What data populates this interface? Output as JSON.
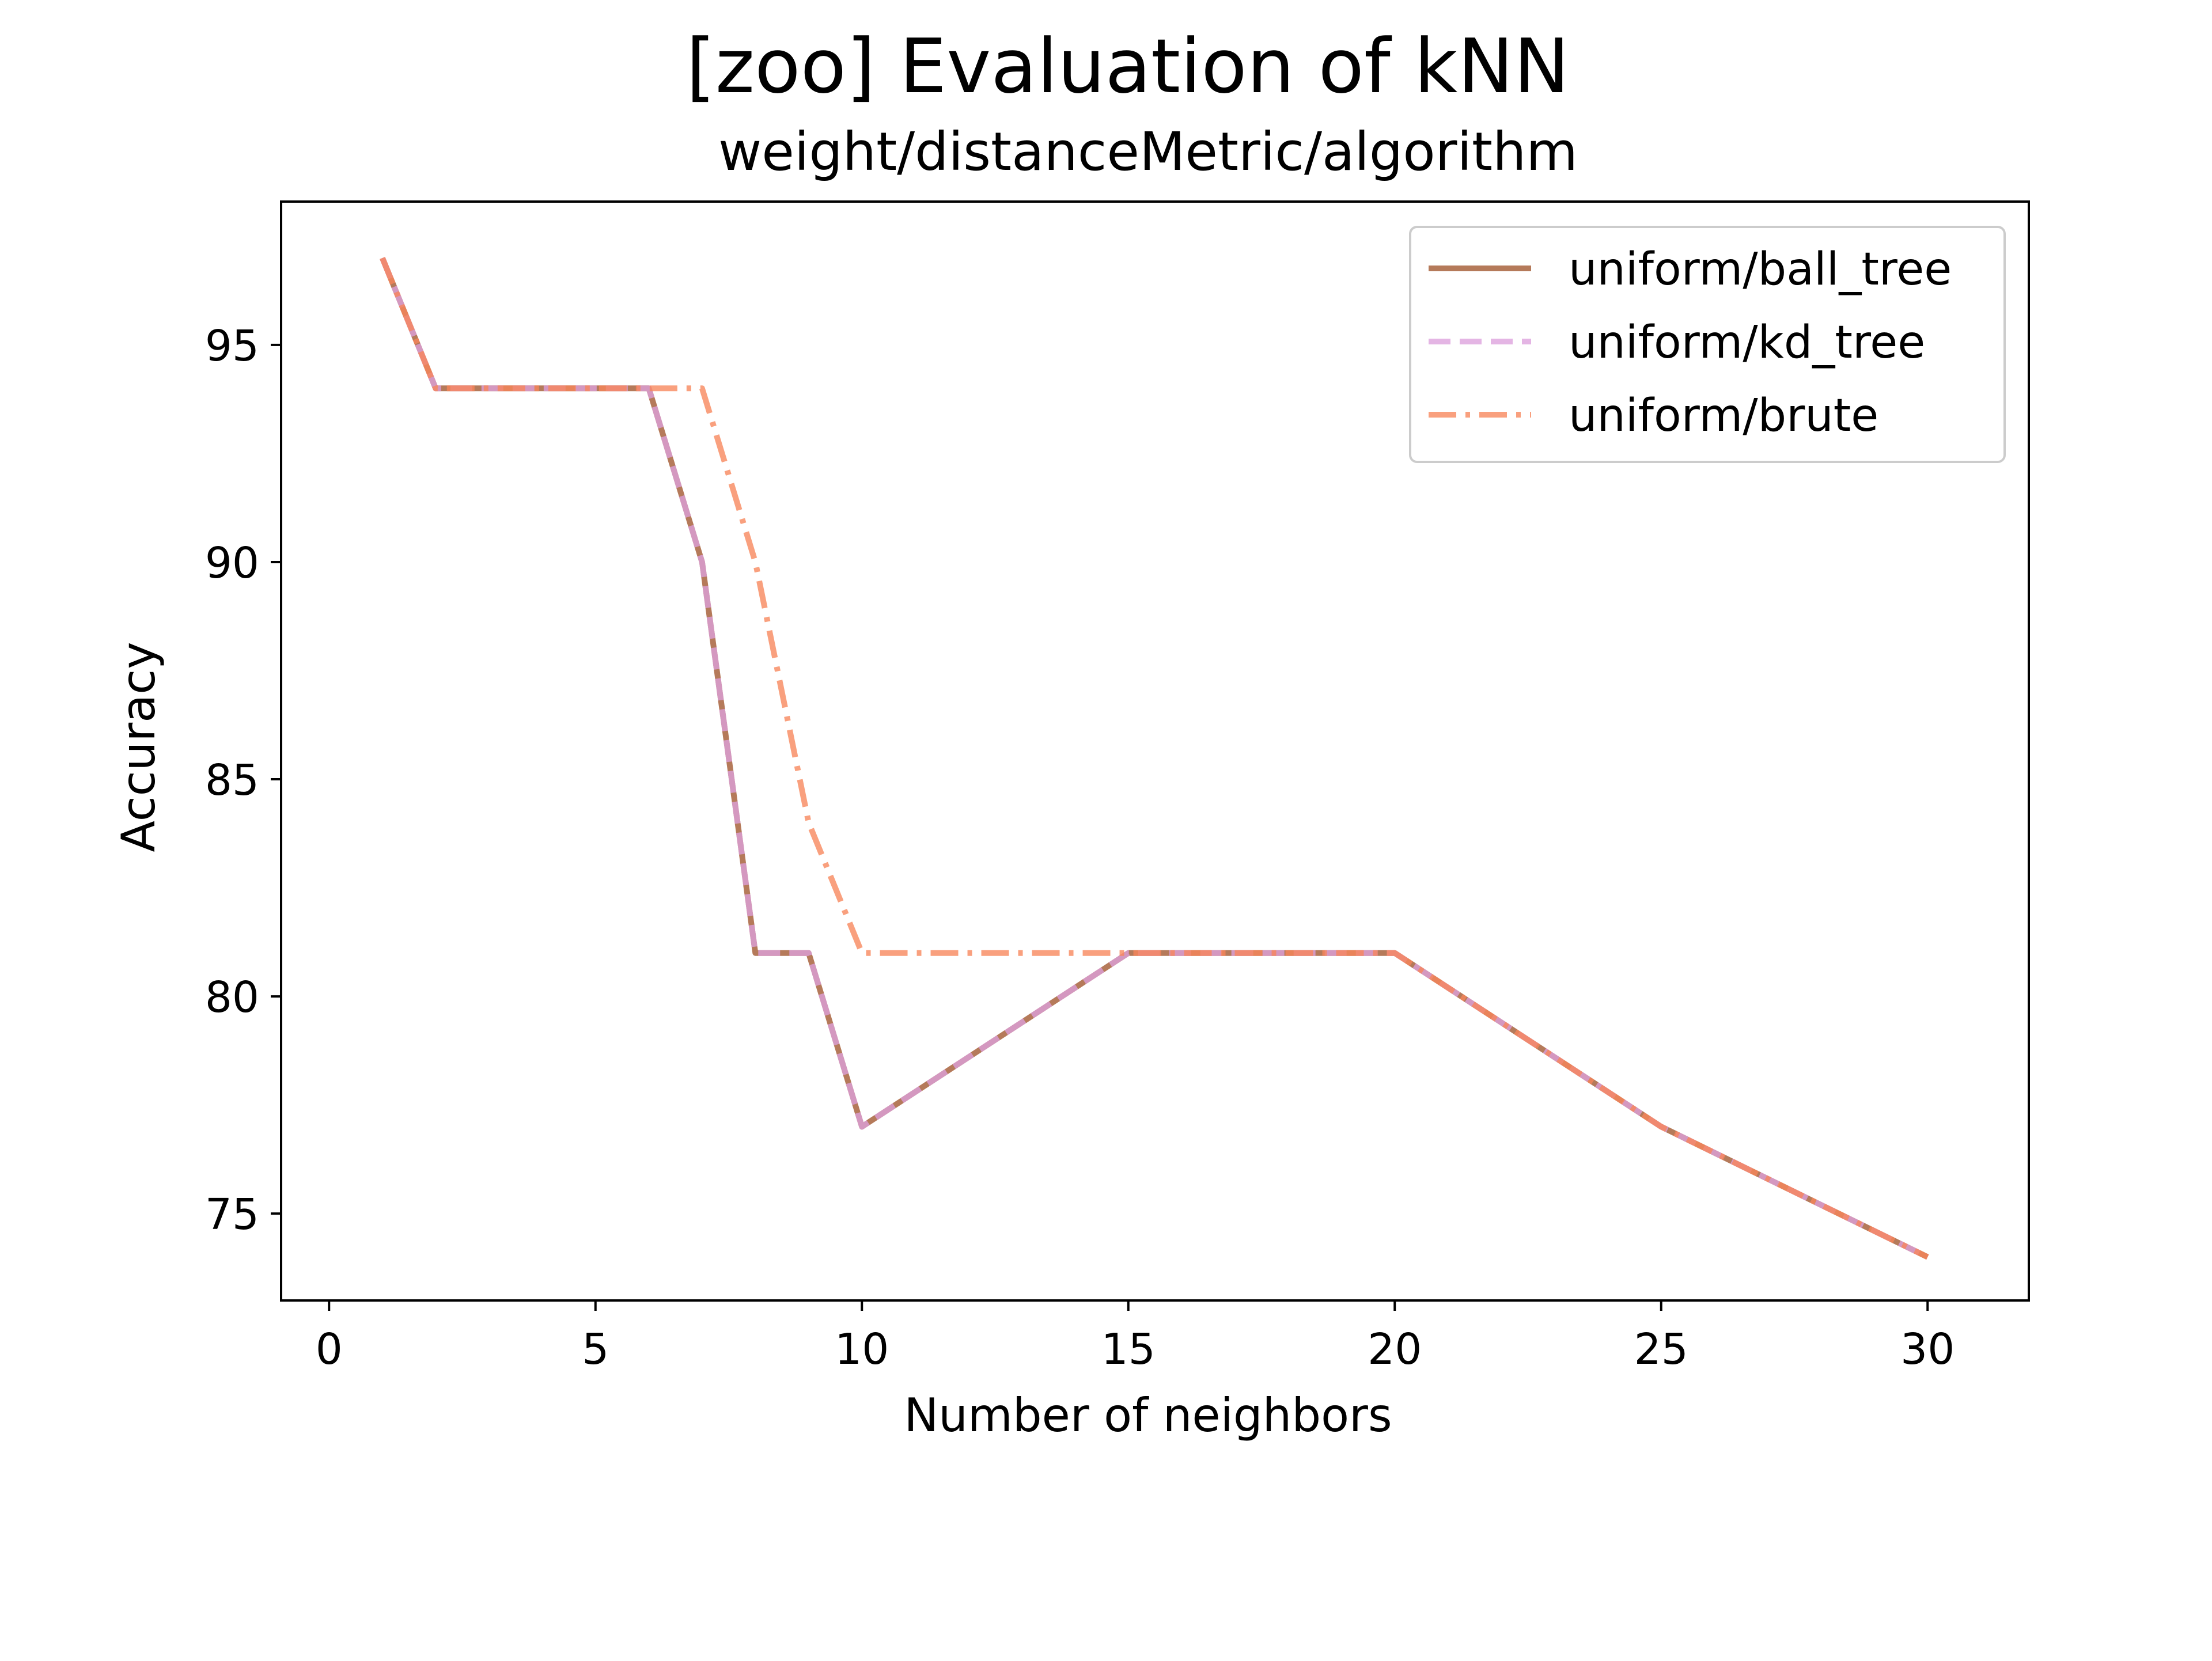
{
  "chart_data": {
    "type": "line",
    "title": "[zoo] Evaluation of kNN",
    "subtitle": "weight/distanceMetric/algorithm",
    "xlabel": "Number of neighbors",
    "ylabel": "Accuracy",
    "xlim": [
      -0.9,
      31.9
    ],
    "ylim": [
      73.0,
      98.3
    ],
    "x_ticks": [
      0,
      5,
      10,
      15,
      20,
      25,
      30
    ],
    "y_ticks": [
      75,
      80,
      85,
      90,
      95
    ],
    "legend_position": "top-right",
    "grid": false,
    "x": [
      1,
      2,
      3,
      4,
      5,
      6,
      7,
      8,
      9,
      10,
      15,
      20,
      25,
      30
    ],
    "series": [
      {
        "name": "uniform/ball_tree",
        "color": "#a0552b",
        "linestyle": "solid",
        "values": [
          97,
          94,
          94,
          94,
          94,
          94,
          90,
          81,
          81,
          77,
          81,
          81,
          77,
          74
        ]
      },
      {
        "name": "uniform/kd_tree",
        "color": "#dda0dd",
        "linestyle": "dashed",
        "values": [
          97,
          94,
          94,
          94,
          94,
          94,
          90,
          81,
          81,
          77,
          81,
          81,
          77,
          74
        ]
      },
      {
        "name": "uniform/brute",
        "color": "#f7855a",
        "linestyle": "dashdot",
        "values": [
          97,
          94,
          94,
          94,
          94,
          94,
          94,
          90,
          84,
          81,
          81,
          81,
          77,
          74
        ]
      }
    ]
  }
}
